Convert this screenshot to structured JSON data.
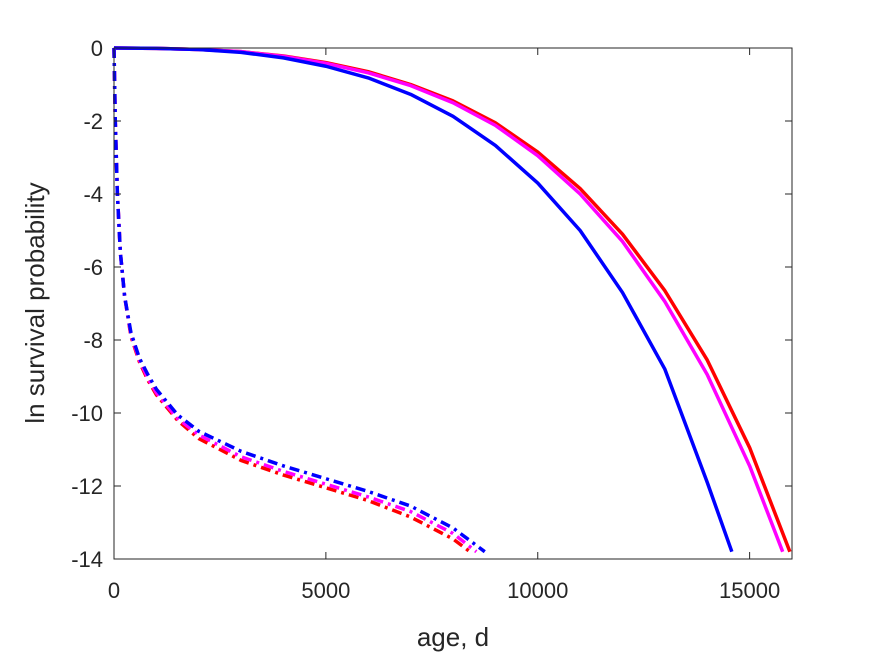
{
  "chart_data": {
    "type": "line",
    "title": "",
    "xlabel": "age, d",
    "ylabel": "ln survival probability",
    "xlim": [
      0,
      16000
    ],
    "ylim": [
      -14,
      0
    ],
    "xticks": [
      0,
      5000,
      10000,
      15000
    ],
    "xtick_labels": [
      "0",
      "5000",
      "10000",
      "15000"
    ],
    "yticks": [
      0,
      -2,
      -4,
      -6,
      -8,
      -10,
      -12,
      -14
    ],
    "ytick_labels": [
      "0",
      "-2",
      "-4",
      "-6",
      "-8",
      "-10",
      "-12",
      "-14"
    ],
    "grid": false,
    "legend": "none",
    "series": [
      {
        "color": "#ff0000",
        "style": "solid",
        "x": [
          0,
          1000,
          2000,
          3000,
          4000,
          5000,
          6000,
          7000,
          8000,
          9000,
          10000,
          11000,
          12000,
          13000,
          14000,
          15000,
          15950
        ],
        "y": [
          0,
          -0.01,
          -0.04,
          -0.1,
          -0.22,
          -0.4,
          -0.65,
          -1.0,
          -1.45,
          -2.05,
          -2.85,
          -3.85,
          -5.1,
          -6.65,
          -8.55,
          -10.95,
          -13.8
        ]
      },
      {
        "color": "#ff00ff",
        "style": "solid",
        "x": [
          0,
          1000,
          2000,
          3000,
          4000,
          5000,
          6000,
          7000,
          8000,
          9000,
          10000,
          11000,
          12000,
          13000,
          14000,
          15000,
          15780
        ],
        "y": [
          0,
          -0.01,
          -0.04,
          -0.1,
          -0.23,
          -0.42,
          -0.68,
          -1.03,
          -1.5,
          -2.12,
          -2.95,
          -4.0,
          -5.3,
          -6.95,
          -8.95,
          -11.45,
          -13.8
        ]
      },
      {
        "color": "#0000ff",
        "style": "solid",
        "x": [
          0,
          1000,
          2000,
          3000,
          4000,
          5000,
          6000,
          7000,
          8000,
          9000,
          10000,
          11000,
          12000,
          13000,
          14000,
          14580
        ],
        "y": [
          0,
          -0.01,
          -0.04,
          -0.12,
          -0.27,
          -0.5,
          -0.82,
          -1.27,
          -1.87,
          -2.67,
          -3.7,
          -5.0,
          -6.7,
          -8.8,
          -11.9,
          -13.8
        ]
      },
      {
        "color": "#ff0000",
        "style": "dashdot",
        "x": [
          0,
          30,
          80,
          150,
          250,
          400,
          600,
          800,
          1000,
          1500,
          2000,
          3000,
          4000,
          5000,
          6000,
          7000,
          8000,
          8400
        ],
        "y": [
          0,
          -2.0,
          -4.0,
          -5.6,
          -6.8,
          -7.9,
          -8.6,
          -9.1,
          -9.5,
          -10.2,
          -10.7,
          -11.3,
          -11.7,
          -12.05,
          -12.4,
          -12.85,
          -13.45,
          -13.8
        ]
      },
      {
        "color": "#ff00ff",
        "style": "dashdot",
        "x": [
          0,
          30,
          80,
          150,
          250,
          400,
          600,
          800,
          1000,
          1500,
          2000,
          3000,
          4000,
          5000,
          6000,
          7000,
          8000,
          8550
        ],
        "y": [
          0,
          -2.0,
          -4.0,
          -5.6,
          -6.8,
          -7.85,
          -8.55,
          -9.05,
          -9.45,
          -10.15,
          -10.6,
          -11.2,
          -11.6,
          -11.95,
          -12.3,
          -12.7,
          -13.3,
          -13.8
        ]
      },
      {
        "color": "#0000ff",
        "style": "dashdot",
        "x": [
          0,
          30,
          80,
          150,
          250,
          400,
          600,
          800,
          1000,
          1500,
          2000,
          3000,
          4000,
          5000,
          6000,
          7000,
          8000,
          8750
        ],
        "y": [
          0,
          -2.0,
          -4.0,
          -5.6,
          -6.8,
          -7.8,
          -8.5,
          -8.95,
          -9.35,
          -10.05,
          -10.5,
          -11.05,
          -11.45,
          -11.8,
          -12.15,
          -12.55,
          -13.15,
          -13.8
        ]
      }
    ]
  }
}
